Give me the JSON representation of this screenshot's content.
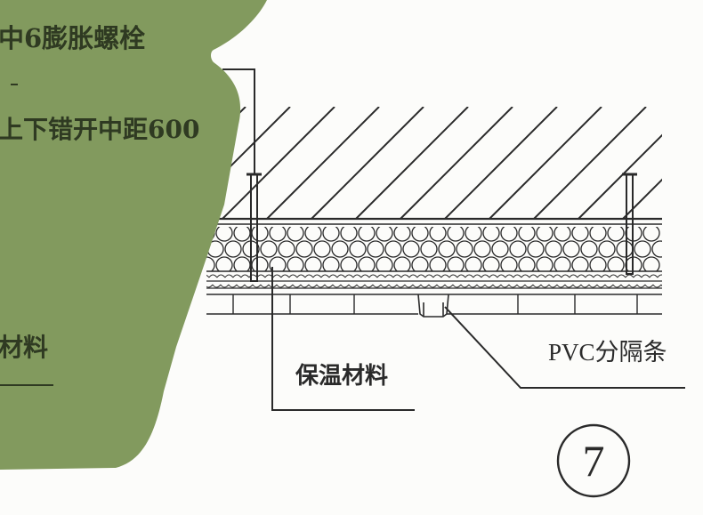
{
  "figure": {
    "detail_number": "7",
    "colors": {
      "panel_green": "#829a5e",
      "line": "#2a2a2a",
      "paper": "#fcfcfa"
    }
  },
  "side_panel": {
    "line_bolt": "中6膨胀螺栓",
    "line_spacing": "上下错开中距600",
    "line_material_partial": "材料"
  },
  "callouts": {
    "insulation": "保温材料",
    "pvc_strip": "PVC分隔条"
  }
}
